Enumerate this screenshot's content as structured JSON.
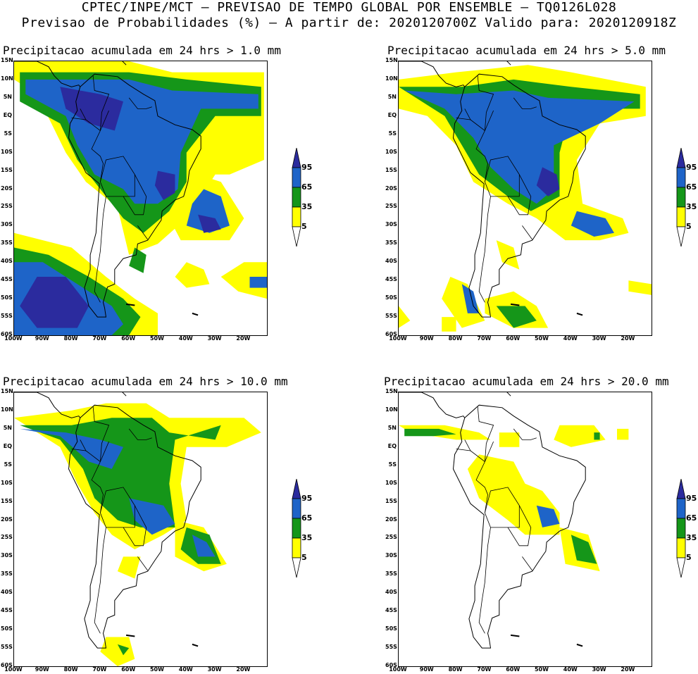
{
  "header": {
    "line1": "CPTEC/INPE/MCT – PREVISAO DE TEMPO GLOBAL POR ENSEMBLE – TQ0126L028",
    "line2": "Previsao de Probabilidades (%) –   A partir de: 2020120700Z  Valido para: 2020120918Z"
  },
  "panels": [
    {
      "title": "Precipitacao acumulada em 24 hrs > 1.0 mm"
    },
    {
      "title": "Precipitacao acumulada em 24 hrs > 5.0 mm"
    },
    {
      "title": "Precipitacao acumulada em 24 hrs > 10.0 mm"
    },
    {
      "title": "Precipitacao acumulada em 24 hrs > 20.0 mm"
    }
  ],
  "lat_labels": [
    "15N",
    "10N",
    "5N",
    "EQ",
    "5S",
    "10S",
    "15S",
    "20S",
    "25S",
    "30S",
    "35S",
    "40S",
    "45S",
    "50S",
    "55S",
    "60S"
  ],
  "lon_labels": [
    "100W",
    "90W",
    "80W",
    "70W",
    "60W",
    "50W",
    "40W",
    "30W",
    "20W"
  ],
  "legend": {
    "labels": [
      "95",
      "65",
      "35",
      "5"
    ],
    "colors": {
      "c95": "#2b2b9e",
      "c65": "#1e64c8",
      "c35": "#159619",
      "c5": "#ffff00"
    }
  }
}
